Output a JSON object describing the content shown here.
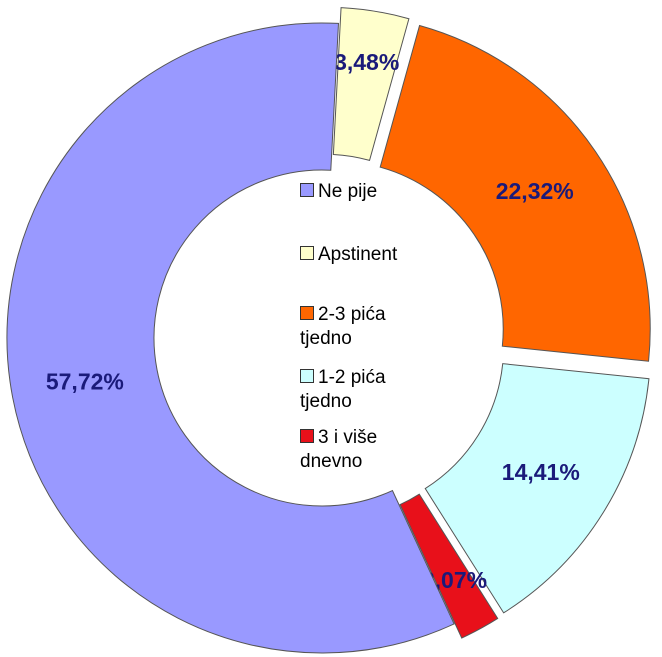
{
  "chart_data": {
    "type": "donut",
    "categories": [
      "Ne pije",
      "Apstinent",
      "2-3 pića tjedno",
      "1-2 pića tjedno",
      "3 i više dnevno"
    ],
    "values": [
      57.72,
      3.48,
      22.32,
      14.41,
      2.07
    ],
    "value_labels": [
      "57,72%",
      "3,48%",
      "22,32%",
      "14,41%",
      "2,07%"
    ],
    "colors": [
      "#9999ff",
      "#ffffcc",
      "#ff6600",
      "#ccffff",
      "#e8101a"
    ]
  }
}
